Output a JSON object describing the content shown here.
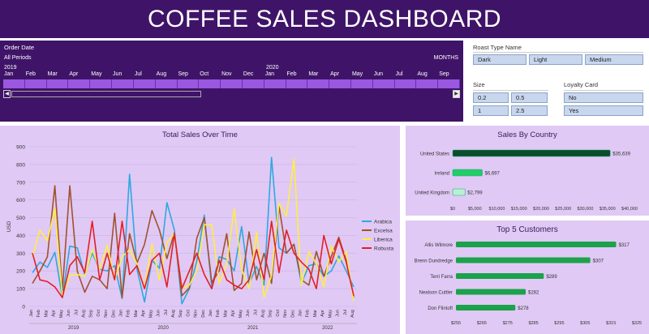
{
  "title": "COFFEE SALES DASHBOARD",
  "timeline": {
    "title": "Order Date",
    "period_label": "All Periods",
    "unit_label": "MONTHS",
    "years": [
      "2019",
      "2020"
    ],
    "months": [
      "Jan",
      "Feb",
      "Mar",
      "Apr",
      "May",
      "Jun",
      "Jul",
      "Aug",
      "Sep",
      "Oct",
      "Nov",
      "Dec",
      "Jan",
      "Feb",
      "Mar",
      "Apr",
      "May",
      "Jun",
      "Jul",
      "Aug",
      "Sep"
    ]
  },
  "roast_slicer": {
    "title": "Roast Type Name",
    "options": [
      "Dark",
      "Light",
      "Medium"
    ]
  },
  "size_slicer": {
    "title": "Size",
    "options": [
      "0.2",
      "0.5",
      "1",
      "2.5"
    ]
  },
  "loyalty_slicer": {
    "title": "Loyalty Card",
    "options": [
      "No",
      "Yes"
    ]
  },
  "colors": {
    "header": "#3f1468",
    "panel": "#e0c9f5",
    "accent": "#9a57e0",
    "slicer_button": "#c8d6ee"
  },
  "chart_data": [
    {
      "type": "line",
      "title": "Total Sales Over Time",
      "ylabel": "USD",
      "ylim": [
        0,
        900
      ],
      "yticks": [
        0,
        100,
        200,
        300,
        400,
        500,
        600,
        700,
        800,
        900
      ],
      "x": [
        "Jan",
        "Feb",
        "Mar",
        "Apr",
        "May",
        "Jun",
        "Jul",
        "Aug",
        "Sep",
        "Oct",
        "Nov",
        "Dec",
        "Jan",
        "Feb",
        "Mar",
        "Apr",
        "May",
        "Jun",
        "Jul",
        "Aug",
        "Sep",
        "Oct",
        "Nov",
        "Dec",
        "Jan",
        "Feb",
        "Mar",
        "Apr",
        "May",
        "Jun",
        "Jul",
        "Aug",
        "Sep",
        "Oct",
        "Nov",
        "Dec",
        "Jan",
        "Feb",
        "Mar",
        "Apr",
        "May",
        "Jun",
        "Jul",
        "Aug"
      ],
      "year_labels": [
        "2019",
        "2020",
        "2021",
        "2022"
      ],
      "legend_position": "right",
      "series": [
        {
          "name": "Arabica",
          "color": "#2ea8e0",
          "values": [
            190,
            250,
            220,
            305,
            50,
            340,
            330,
            180,
            300,
            210,
            200,
            230,
            45,
            745,
            210,
            25,
            260,
            215,
            585,
            430,
            15,
            100,
            255,
            515,
            110,
            280,
            265,
            200,
            450,
            130,
            225,
            120,
            840,
            330,
            300,
            350,
            130,
            230,
            240,
            170,
            200,
            285,
            200,
            110
          ]
        },
        {
          "name": "Excelsa",
          "color": "#a0522d",
          "values": [
            130,
            200,
            280,
            680,
            90,
            680,
            200,
            80,
            170,
            150,
            100,
            525,
            50,
            410,
            245,
            350,
            540,
            430,
            270,
            415,
            60,
            105,
            385,
            500,
            135,
            200,
            410,
            90,
            130,
            420,
            150,
            300,
            130,
            565,
            300,
            350,
            150,
            120,
            310,
            170,
            280,
            390,
            260,
            50
          ]
        },
        {
          "name": "Liberica",
          "color": "#ffee44",
          "values": [
            280,
            430,
            370,
            550,
            60,
            175,
            180,
            170,
            320,
            210,
            345,
            150,
            280,
            320,
            240,
            105,
            350,
            150,
            360,
            410,
            100,
            120,
            200,
            460,
            460,
            130,
            240,
            550,
            210,
            100,
            420,
            50,
            175,
            580,
            510,
            830,
            120,
            310,
            240,
            110,
            340,
            250,
            310,
            30
          ]
        },
        {
          "name": "Robusta",
          "color": "#e51e25",
          "values": [
            300,
            150,
            140,
            110,
            50,
            230,
            280,
            190,
            480,
            150,
            300,
            150,
            480,
            180,
            230,
            100,
            260,
            300,
            110,
            410,
            100,
            200,
            300,
            180,
            100,
            260,
            150,
            120,
            100,
            150,
            320,
            150,
            480,
            190,
            430,
            300,
            250,
            210,
            100,
            400,
            240,
            380,
            250,
            60
          ]
        }
      ]
    },
    {
      "type": "bar",
      "title": "Sales By Country",
      "categories": [
        "United States",
        "Ireland",
        "United Kingdom"
      ],
      "values": [
        35639,
        6697,
        2799
      ],
      "value_labels": [
        "$35,639",
        "$6,697",
        "$2,799"
      ],
      "xlim": [
        0,
        40000
      ],
      "xticks": [
        "$0",
        "$5,000",
        "$10,000",
        "$15,000",
        "$20,000",
        "$25,000",
        "$30,000",
        "$35,000",
        "$40,000"
      ],
      "colors": [
        "#0a4d2a",
        "#22cc66",
        "#b8f0d0"
      ]
    },
    {
      "type": "bar",
      "title": "Top 5 Customers",
      "categories": [
        "Allis Wilmore",
        "Brenn Dundredge",
        "Terri Farra",
        "Nealson Cuttler",
        "Don Flintoft"
      ],
      "values": [
        317,
        307,
        289,
        282,
        278
      ],
      "value_labels": [
        "$317",
        "$307",
        "$289",
        "$282",
        "$278"
      ],
      "xlim": [
        255,
        325
      ],
      "xticks": [
        "$255",
        "$265",
        "$275",
        "$285",
        "$295",
        "$305",
        "$315",
        "$325"
      ],
      "color": "#1aa34a"
    }
  ]
}
